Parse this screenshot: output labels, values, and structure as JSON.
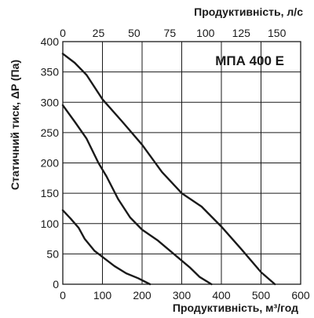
{
  "chart_data": {
    "type": "line",
    "title": "",
    "label": "МПА 400 Е",
    "xlabel": "Продуктивність, м³/год",
    "x2label": "Продуктивність, л/с",
    "ylabel": "Статичний тиск, ΔP (Па)",
    "xlim": [
      0,
      600
    ],
    "x2lim": [
      0,
      166.67
    ],
    "ylim": [
      0,
      400
    ],
    "x_ticks": [
      0,
      100,
      200,
      300,
      400,
      500,
      600
    ],
    "x2_ticks": [
      0,
      25,
      50,
      75,
      100,
      125,
      150
    ],
    "y_ticks": [
      0,
      50,
      100,
      150,
      200,
      250,
      300,
      350,
      400
    ],
    "grid": true,
    "series": [
      {
        "x": [
          0,
          30,
          60,
          100,
          150,
          200,
          250,
          300,
          350,
          400,
          450,
          500,
          535
        ],
        "y": [
          380,
          365,
          345,
          305,
          268,
          230,
          185,
          150,
          128,
          95,
          58,
          20,
          0
        ]
      },
      {
        "x": [
          0,
          30,
          60,
          90,
          110,
          140,
          170,
          200,
          240,
          280,
          320,
          345,
          375
        ],
        "y": [
          295,
          268,
          240,
          200,
          178,
          140,
          110,
          90,
          72,
          50,
          28,
          12,
          0
        ]
      },
      {
        "x": [
          0,
          20,
          40,
          55,
          80,
          100,
          130,
          160,
          190,
          220
        ],
        "y": [
          122,
          108,
          93,
          75,
          55,
          45,
          30,
          18,
          10,
          0
        ]
      }
    ]
  }
}
